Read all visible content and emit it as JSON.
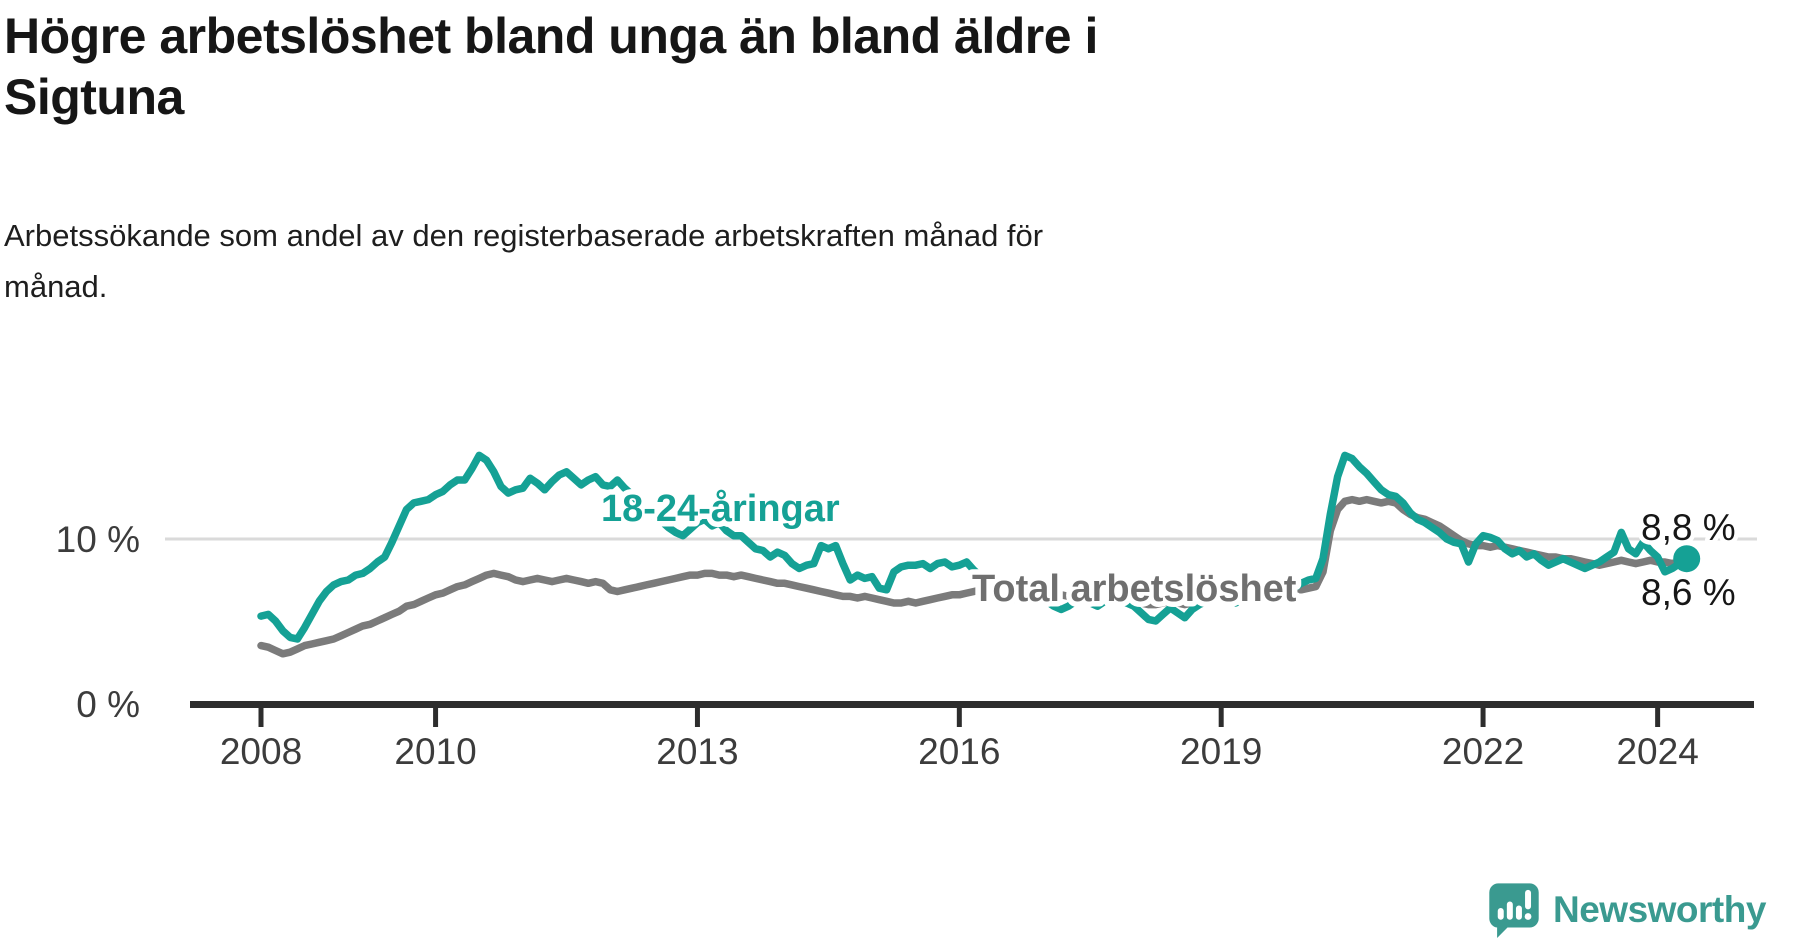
{
  "title_line1": "Högre arbetslöshet bland unga än bland äldre i",
  "title_line2": "Sigtuna",
  "subtitle_line1": "Arbetssökande som andel av den registerbaserade arbetskraften månad för",
  "subtitle_line2": "månad.",
  "logo": {
    "text": "Newsworthy",
    "color": "#3a9a90"
  },
  "chart_data": {
    "type": "line",
    "title": "Högre arbetslöshet bland unga än bland äldre i Sigtuna",
    "subtitle": "Arbetssökande som andel av den registerbaserade arbetskraften månad för månad.",
    "x_start": "2008-01",
    "x_end": "2024-05",
    "x_unit": "month",
    "ylim": [
      0,
      17
    ],
    "grid": "single-line-at-10",
    "legend_position": "inline-labels",
    "colors": {
      "youth": "#15a195",
      "total": "#7b7b7b",
      "axis": "#2d2d2d",
      "gridline": "#dadada"
    },
    "x_axis": {
      "ticks": [
        {
          "year": 2008,
          "label": "2008"
        },
        {
          "year": 2010,
          "label": "2010"
        },
        {
          "year": 2013,
          "label": "2013"
        },
        {
          "year": 2016,
          "label": "2016"
        },
        {
          "year": 2019,
          "label": "2019"
        },
        {
          "year": 2022,
          "label": "2022"
        },
        {
          "year": 2024,
          "label": "2024"
        }
      ]
    },
    "y_axis": {
      "label_0": "0 %",
      "label_10": "10 %",
      "gridline_value": 10
    },
    "series": [
      {
        "name": "18-24-åringar",
        "color": "#15a195",
        "end_label": "8,8 %",
        "end_value": 8.8,
        "values": [
          5.3,
          5.4,
          5.0,
          4.4,
          4.0,
          3.9,
          4.6,
          5.4,
          6.2,
          6.8,
          7.2,
          7.4,
          7.5,
          7.8,
          7.9,
          8.2,
          8.6,
          8.9,
          9.8,
          10.8,
          11.8,
          12.2,
          12.3,
          12.4,
          12.7,
          12.9,
          13.3,
          13.6,
          13.6,
          14.3,
          15.1,
          14.8,
          14.1,
          13.2,
          12.8,
          13.0,
          13.1,
          13.7,
          13.4,
          13.0,
          13.5,
          13.9,
          14.1,
          13.7,
          13.3,
          13.6,
          13.8,
          13.3,
          13.2,
          13.6,
          13.1,
          12.7,
          12.2,
          11.8,
          11.4,
          11.1,
          10.7,
          10.4,
          10.2,
          10.6,
          11.0,
          11.2,
          10.8,
          11.0,
          10.5,
          10.2,
          10.2,
          9.8,
          9.4,
          9.3,
          8.9,
          9.2,
          9.0,
          8.5,
          8.2,
          8.4,
          8.5,
          9.6,
          9.4,
          9.6,
          8.5,
          7.5,
          7.8,
          7.6,
          7.7,
          7.0,
          6.9,
          8.0,
          8.3,
          8.4,
          8.4,
          8.5,
          8.2,
          8.5,
          8.6,
          8.3,
          8.4,
          8.6,
          8.1,
          7.7,
          7.3,
          6.7,
          6.4,
          6.2,
          6.5,
          6.8,
          6.6,
          6.4,
          6.2,
          5.9,
          5.7,
          5.9,
          6.2,
          6.4,
          6.1,
          5.9,
          6.2,
          6.4,
          6.3,
          6.1,
          5.9,
          5.5,
          5.1,
          5.0,
          5.4,
          5.8,
          5.5,
          5.2,
          5.7,
          6.0,
          6.2,
          6.4,
          6.5,
          6.3,
          6.1,
          6.3,
          6.5,
          6.7,
          6.9,
          6.7,
          6.5,
          6.7,
          7.0,
          7.3,
          7.5,
          7.6,
          8.8,
          11.5,
          13.8,
          15.1,
          14.9,
          14.4,
          14.0,
          13.5,
          13.0,
          12.7,
          12.6,
          12.2,
          11.6,
          11.2,
          11.0,
          10.7,
          10.4,
          10.0,
          9.8,
          9.7,
          8.6,
          9.7,
          10.2,
          10.1,
          9.9,
          9.4,
          9.1,
          9.3,
          8.9,
          9.1,
          8.7,
          8.4,
          8.6,
          8.8,
          8.6,
          8.4,
          8.2,
          8.4,
          8.6,
          8.9,
          9.2,
          10.4,
          9.4,
          9.1,
          9.8,
          9.3,
          8.9,
          8.0,
          8.2,
          8.5,
          8.8
        ]
      },
      {
        "name": "Total arbetslöshet",
        "color": "#7b7b7b",
        "end_label": "8,6 %",
        "end_value": 8.6,
        "values": [
          3.5,
          3.4,
          3.2,
          3.0,
          3.1,
          3.3,
          3.5,
          3.6,
          3.7,
          3.8,
          3.9,
          4.1,
          4.3,
          4.5,
          4.7,
          4.8,
          5.0,
          5.2,
          5.4,
          5.6,
          5.9,
          6.0,
          6.2,
          6.4,
          6.6,
          6.7,
          6.9,
          7.1,
          7.2,
          7.4,
          7.6,
          7.8,
          7.9,
          7.8,
          7.7,
          7.5,
          7.4,
          7.5,
          7.6,
          7.5,
          7.4,
          7.5,
          7.6,
          7.5,
          7.4,
          7.3,
          7.4,
          7.3,
          6.9,
          6.8,
          6.9,
          7.0,
          7.1,
          7.2,
          7.3,
          7.4,
          7.5,
          7.6,
          7.7,
          7.8,
          7.8,
          7.9,
          7.9,
          7.8,
          7.8,
          7.7,
          7.8,
          7.7,
          7.6,
          7.5,
          7.4,
          7.3,
          7.3,
          7.2,
          7.1,
          7.0,
          6.9,
          6.8,
          6.7,
          6.6,
          6.5,
          6.5,
          6.4,
          6.5,
          6.4,
          6.3,
          6.2,
          6.1,
          6.1,
          6.2,
          6.1,
          6.2,
          6.3,
          6.4,
          6.5,
          6.6,
          6.6,
          6.7,
          6.8,
          6.9,
          6.9,
          6.8,
          6.9,
          6.9,
          6.8,
          6.7,
          6.7,
          6.8,
          6.8,
          6.7,
          6.6,
          6.5,
          6.4,
          6.4,
          6.5,
          6.4,
          6.3,
          6.3,
          6.4,
          6.3,
          6.2,
          6.1,
          6.0,
          6.0,
          6.1,
          6.2,
          6.1,
          6.0,
          6.1,
          6.2,
          6.3,
          6.4,
          6.4,
          6.5,
          6.4,
          6.5,
          6.6,
          6.7,
          6.6,
          6.7,
          6.8,
          6.8,
          6.9,
          6.9,
          7.0,
          7.1,
          8.0,
          10.5,
          11.8,
          12.3,
          12.4,
          12.3,
          12.4,
          12.3,
          12.2,
          12.3,
          12.2,
          11.8,
          11.5,
          11.3,
          11.2,
          11.0,
          10.8,
          10.5,
          10.2,
          9.9,
          9.7,
          9.6,
          9.6,
          9.5,
          9.6,
          9.5,
          9.4,
          9.3,
          9.2,
          9.1,
          9.0,
          8.9,
          8.9,
          8.8,
          8.8,
          8.7,
          8.6,
          8.5,
          8.4,
          8.5,
          8.6,
          8.7,
          8.6,
          8.5,
          8.6,
          8.7,
          8.6,
          8.6,
          8.5,
          8.6,
          8.6
        ]
      }
    ]
  }
}
